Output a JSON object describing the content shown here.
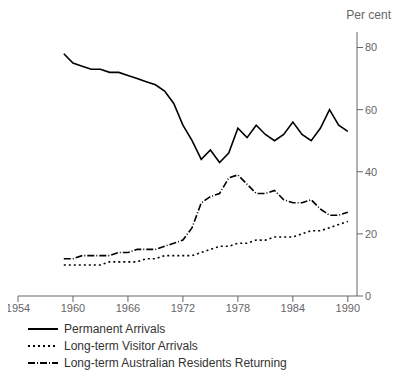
{
  "chart_data": {
    "type": "line",
    "x": [
      1959,
      1960,
      1961,
      1962,
      1963,
      1964,
      1965,
      1966,
      1967,
      1968,
      1969,
      1970,
      1971,
      1972,
      1973,
      1974,
      1975,
      1976,
      1977,
      1978,
      1979,
      1980,
      1981,
      1982,
      1983,
      1984,
      1985,
      1986,
      1987,
      1988,
      1989,
      1990
    ],
    "series": [
      {
        "name": "Permanent Arrivals",
        "color": "#000000",
        "line_style": "solid",
        "values": [
          78,
          75,
          74,
          73,
          73,
          72,
          72,
          71,
          70,
          69,
          68,
          66,
          62,
          55,
          50,
          44,
          47,
          43,
          46,
          54,
          51,
          55,
          52,
          50,
          52,
          56,
          52,
          50,
          54,
          60,
          55,
          53
        ]
      },
      {
        "name": "Long-term Visitor Arrivals",
        "color": "#000000",
        "line_style": "dotted",
        "values": [
          10,
          10,
          10,
          10,
          10,
          11,
          11,
          11,
          11,
          12,
          12,
          13,
          13,
          13,
          13,
          14,
          15,
          16,
          16,
          17,
          17,
          18,
          18,
          19,
          19,
          19,
          20,
          21,
          21,
          22,
          23,
          24
        ]
      },
      {
        "name": "Long-term Australian Residents Returning",
        "color": "#000000",
        "line_style": "dashdot",
        "values": [
          12,
          12,
          13,
          13,
          13,
          13,
          14,
          14,
          15,
          15,
          15,
          16,
          17,
          18,
          22,
          30,
          32,
          33,
          38,
          39,
          36,
          33,
          33,
          34,
          31,
          30,
          30,
          31,
          28,
          26,
          26,
          27
        ]
      }
    ],
    "ylabel": "Per cent",
    "xlim": [
      1954,
      1991
    ],
    "ylim": [
      0,
      85
    ],
    "xticks": [
      1954,
      1960,
      1966,
      1972,
      1978,
      1984,
      1990
    ],
    "yticks": [
      0,
      20,
      40,
      60,
      80
    ],
    "legend": "bottom",
    "grid": false
  }
}
